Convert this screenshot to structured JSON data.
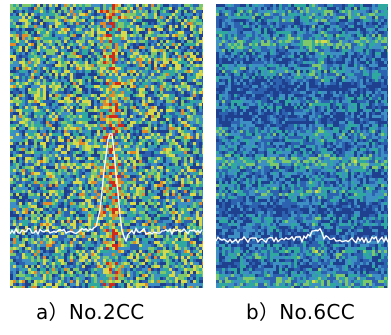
{
  "figure": {
    "panels": [
      {
        "id": "a",
        "caption": "a）No.2CC",
        "colors": [
          "#1f3f8f",
          "#2c62b0",
          "#3e8fc4",
          "#2fa9a0",
          "#7cc86a",
          "#d7d84a",
          "#e08a2a",
          "#d02a1c"
        ],
        "texture": "random-noise-with-central-vertical-segregation-band",
        "profile_color": "#ffffff"
      },
      {
        "id": "b",
        "caption": "b）No.6CC",
        "colors": [
          "#1f3f8f",
          "#2c62b0",
          "#3e8fc4",
          "#2fa9a0",
          "#7cc86a",
          "#d7d84a"
        ],
        "texture": "horizontal-streaks-with-weak-central-band",
        "profile_color": "#ffffff"
      }
    ]
  }
}
